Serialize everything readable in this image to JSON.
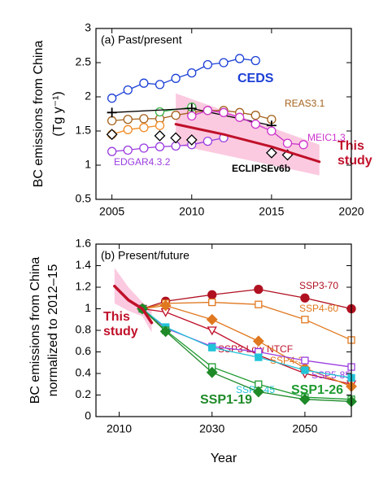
{
  "chart_data": [
    {
      "type": "line",
      "title": "(a) Past/present",
      "y_label": [
        "BC emissions from China",
        "(Tg y⁻¹)"
      ],
      "xlim": [
        2004,
        2020
      ],
      "xticks": [
        2005,
        2010,
        2015,
        2020
      ],
      "ylim": [
        0.5,
        3
      ],
      "yticks": [
        0.5,
        1,
        1.5,
        2,
        2.5,
        3
      ],
      "band": {
        "color": "#f9b8d6",
        "x": [
          2009,
          2018
        ],
        "lower": [
          1.3,
          0.85
        ],
        "upper": [
          2.05,
          1.3
        ]
      },
      "series": [
        {
          "name": "CEDS",
          "color": "#1b3fd6",
          "marker": "circle",
          "filled": false,
          "x": [
            2005,
            2006,
            2007,
            2008,
            2009,
            2010,
            2011,
            2012,
            2013,
            2014
          ],
          "values": [
            1.98,
            2.1,
            2.2,
            2.18,
            2.27,
            2.35,
            2.47,
            2.5,
            2.56,
            2.53
          ]
        },
        {
          "name": "REAS3.1",
          "color": "#a5621d",
          "marker": "circle",
          "filled": false,
          "x": [
            2005,
            2006,
            2007,
            2008,
            2009,
            2010,
            2011,
            2012,
            2013,
            2014,
            2015
          ],
          "values": [
            1.65,
            1.67,
            1.68,
            1.68,
            1.73,
            1.77,
            1.8,
            1.8,
            1.77,
            1.73,
            1.67
          ]
        },
        {
          "color": "#f08a24",
          "marker": "circle",
          "filled": false,
          "x": [
            2005,
            2006,
            2007,
            2008
          ],
          "values": [
            1.45,
            1.52,
            1.55,
            1.58
          ]
        },
        {
          "color": "#3cb44b",
          "marker": "circle",
          "filled": false,
          "x": [
            2008,
            2010
          ],
          "values": [
            1.78,
            1.85
          ]
        },
        {
          "color": "#000000",
          "marker": "plus",
          "filled": false,
          "x": [
            2005,
            2010,
            2015
          ],
          "values": [
            1.77,
            1.83,
            1.58
          ]
        },
        {
          "name": "MEIC1.3",
          "color": "#cc33cc",
          "marker": "circle",
          "filled": false,
          "x": [
            2010,
            2011,
            2012,
            2013,
            2014,
            2015,
            2016,
            2017
          ],
          "values": [
            1.72,
            1.8,
            1.77,
            1.7,
            1.6,
            1.5,
            1.32,
            1.3
          ]
        },
        {
          "name": "EDGAR4.3.2",
          "color": "#9b3de0",
          "marker": "circle",
          "filled": false,
          "x": [
            2005,
            2006,
            2007,
            2008,
            2009,
            2010,
            2011,
            2012
          ],
          "values": [
            1.2,
            1.22,
            1.25,
            1.27,
            1.28,
            1.3,
            1.35,
            1.4
          ]
        },
        {
          "name": "ECLIPSEv6b",
          "color": "#000000",
          "marker": "diamond",
          "filled": false,
          "noline": true,
          "x": [
            2005,
            2008,
            2009,
            2010,
            2015,
            2016
          ],
          "values": [
            1.45,
            1.43,
            1.4,
            1.37,
            1.18,
            1.15
          ]
        },
        {
          "name": "This study",
          "color": "#c0102a",
          "marker": "none",
          "width": 3,
          "x": [
            2009,
            2012,
            2015,
            2018
          ],
          "values": [
            1.6,
            1.45,
            1.27,
            1.05
          ]
        }
      ]
    },
    {
      "type": "line",
      "title": "(b) Present/future",
      "y_label": [
        "BC emissions from China",
        "normalized to 2012–15"
      ],
      "x_label": "Year",
      "xlim": [
        2005,
        2060
      ],
      "xticks": [
        2010,
        2030,
        2050
      ],
      "ylim": [
        0,
        1.6
      ],
      "yticks": [
        0,
        0.2,
        0.4,
        0.6,
        0.8,
        1,
        1.2,
        1.4,
        1.6
      ],
      "band": {
        "color": "#f9b8d6",
        "x": [
          2009,
          2012,
          2015,
          2017
        ],
        "lower": [
          1.05,
          0.98,
          0.93,
          0.78
        ],
        "upper": [
          1.38,
          1.2,
          1.06,
          0.98
        ]
      },
      "series": [
        {
          "name": "SSP3-70",
          "color": "#b01020",
          "marker": "circle",
          "filled": true,
          "x": [
            2015,
            2020,
            2030,
            2040,
            2050,
            2060
          ],
          "values": [
            1,
            1.07,
            1.13,
            1.18,
            1.1,
            1
          ]
        },
        {
          "name": "SSP4-60",
          "color": "#e07820",
          "marker": "square",
          "filled": false,
          "x": [
            2015,
            2020,
            2030,
            2040,
            2050,
            2060
          ],
          "values": [
            1,
            1.05,
            1.06,
            1.04,
            0.9,
            0.71
          ]
        },
        {
          "name": "SSP3-Low NTCF",
          "color": "#c0102a",
          "marker": "triangle",
          "filled": false,
          "x": [
            2015,
            2020,
            2030,
            2040,
            2050,
            2060
          ],
          "values": [
            1,
            0.97,
            0.8,
            0.57,
            0.4,
            0.3
          ]
        },
        {
          "name": "SSP4-34",
          "color": "#e07820",
          "marker": "diamond",
          "filled": true,
          "x": [
            2015,
            2020,
            2030,
            2040,
            2050,
            2060
          ],
          "values": [
            1,
            1.03,
            0.9,
            0.7,
            0.45,
            0.28
          ]
        },
        {
          "name": "SSP5-85",
          "color": "#9b3de0",
          "marker": "square",
          "filled": false,
          "x": [
            2015,
            2020,
            2030,
            2040,
            2050,
            2060
          ],
          "values": [
            1,
            0.82,
            0.65,
            0.6,
            0.52,
            0.46
          ]
        },
        {
          "name": "SSP2-45",
          "color": "#22c4d8",
          "marker": "square",
          "filled": true,
          "x": [
            2015,
            2020,
            2030,
            2040,
            2050,
            2060
          ],
          "values": [
            1,
            0.83,
            0.64,
            0.55,
            0.43,
            0.36
          ]
        },
        {
          "name": "SSP1-26",
          "color": "#1e9a30",
          "marker": "square",
          "filled": false,
          "x": [
            2015,
            2020,
            2030,
            2040,
            2050,
            2060
          ],
          "values": [
            1,
            0.8,
            0.46,
            0.3,
            0.18,
            0.16
          ]
        },
        {
          "name": "SSP1-19",
          "color": "#1e8a28",
          "marker": "diamond",
          "filled": true,
          "x": [
            2015,
            2020,
            2030,
            2040,
            2050,
            2060
          ],
          "values": [
            1,
            0.79,
            0.41,
            0.23,
            0.16,
            0.14
          ]
        },
        {
          "name": "This study",
          "color": "#c0102a",
          "marker": "none",
          "width": 3.5,
          "x": [
            2009,
            2012,
            2015,
            2017
          ],
          "values": [
            1.21,
            1.08,
            1,
            0.87
          ]
        }
      ]
    }
  ]
}
